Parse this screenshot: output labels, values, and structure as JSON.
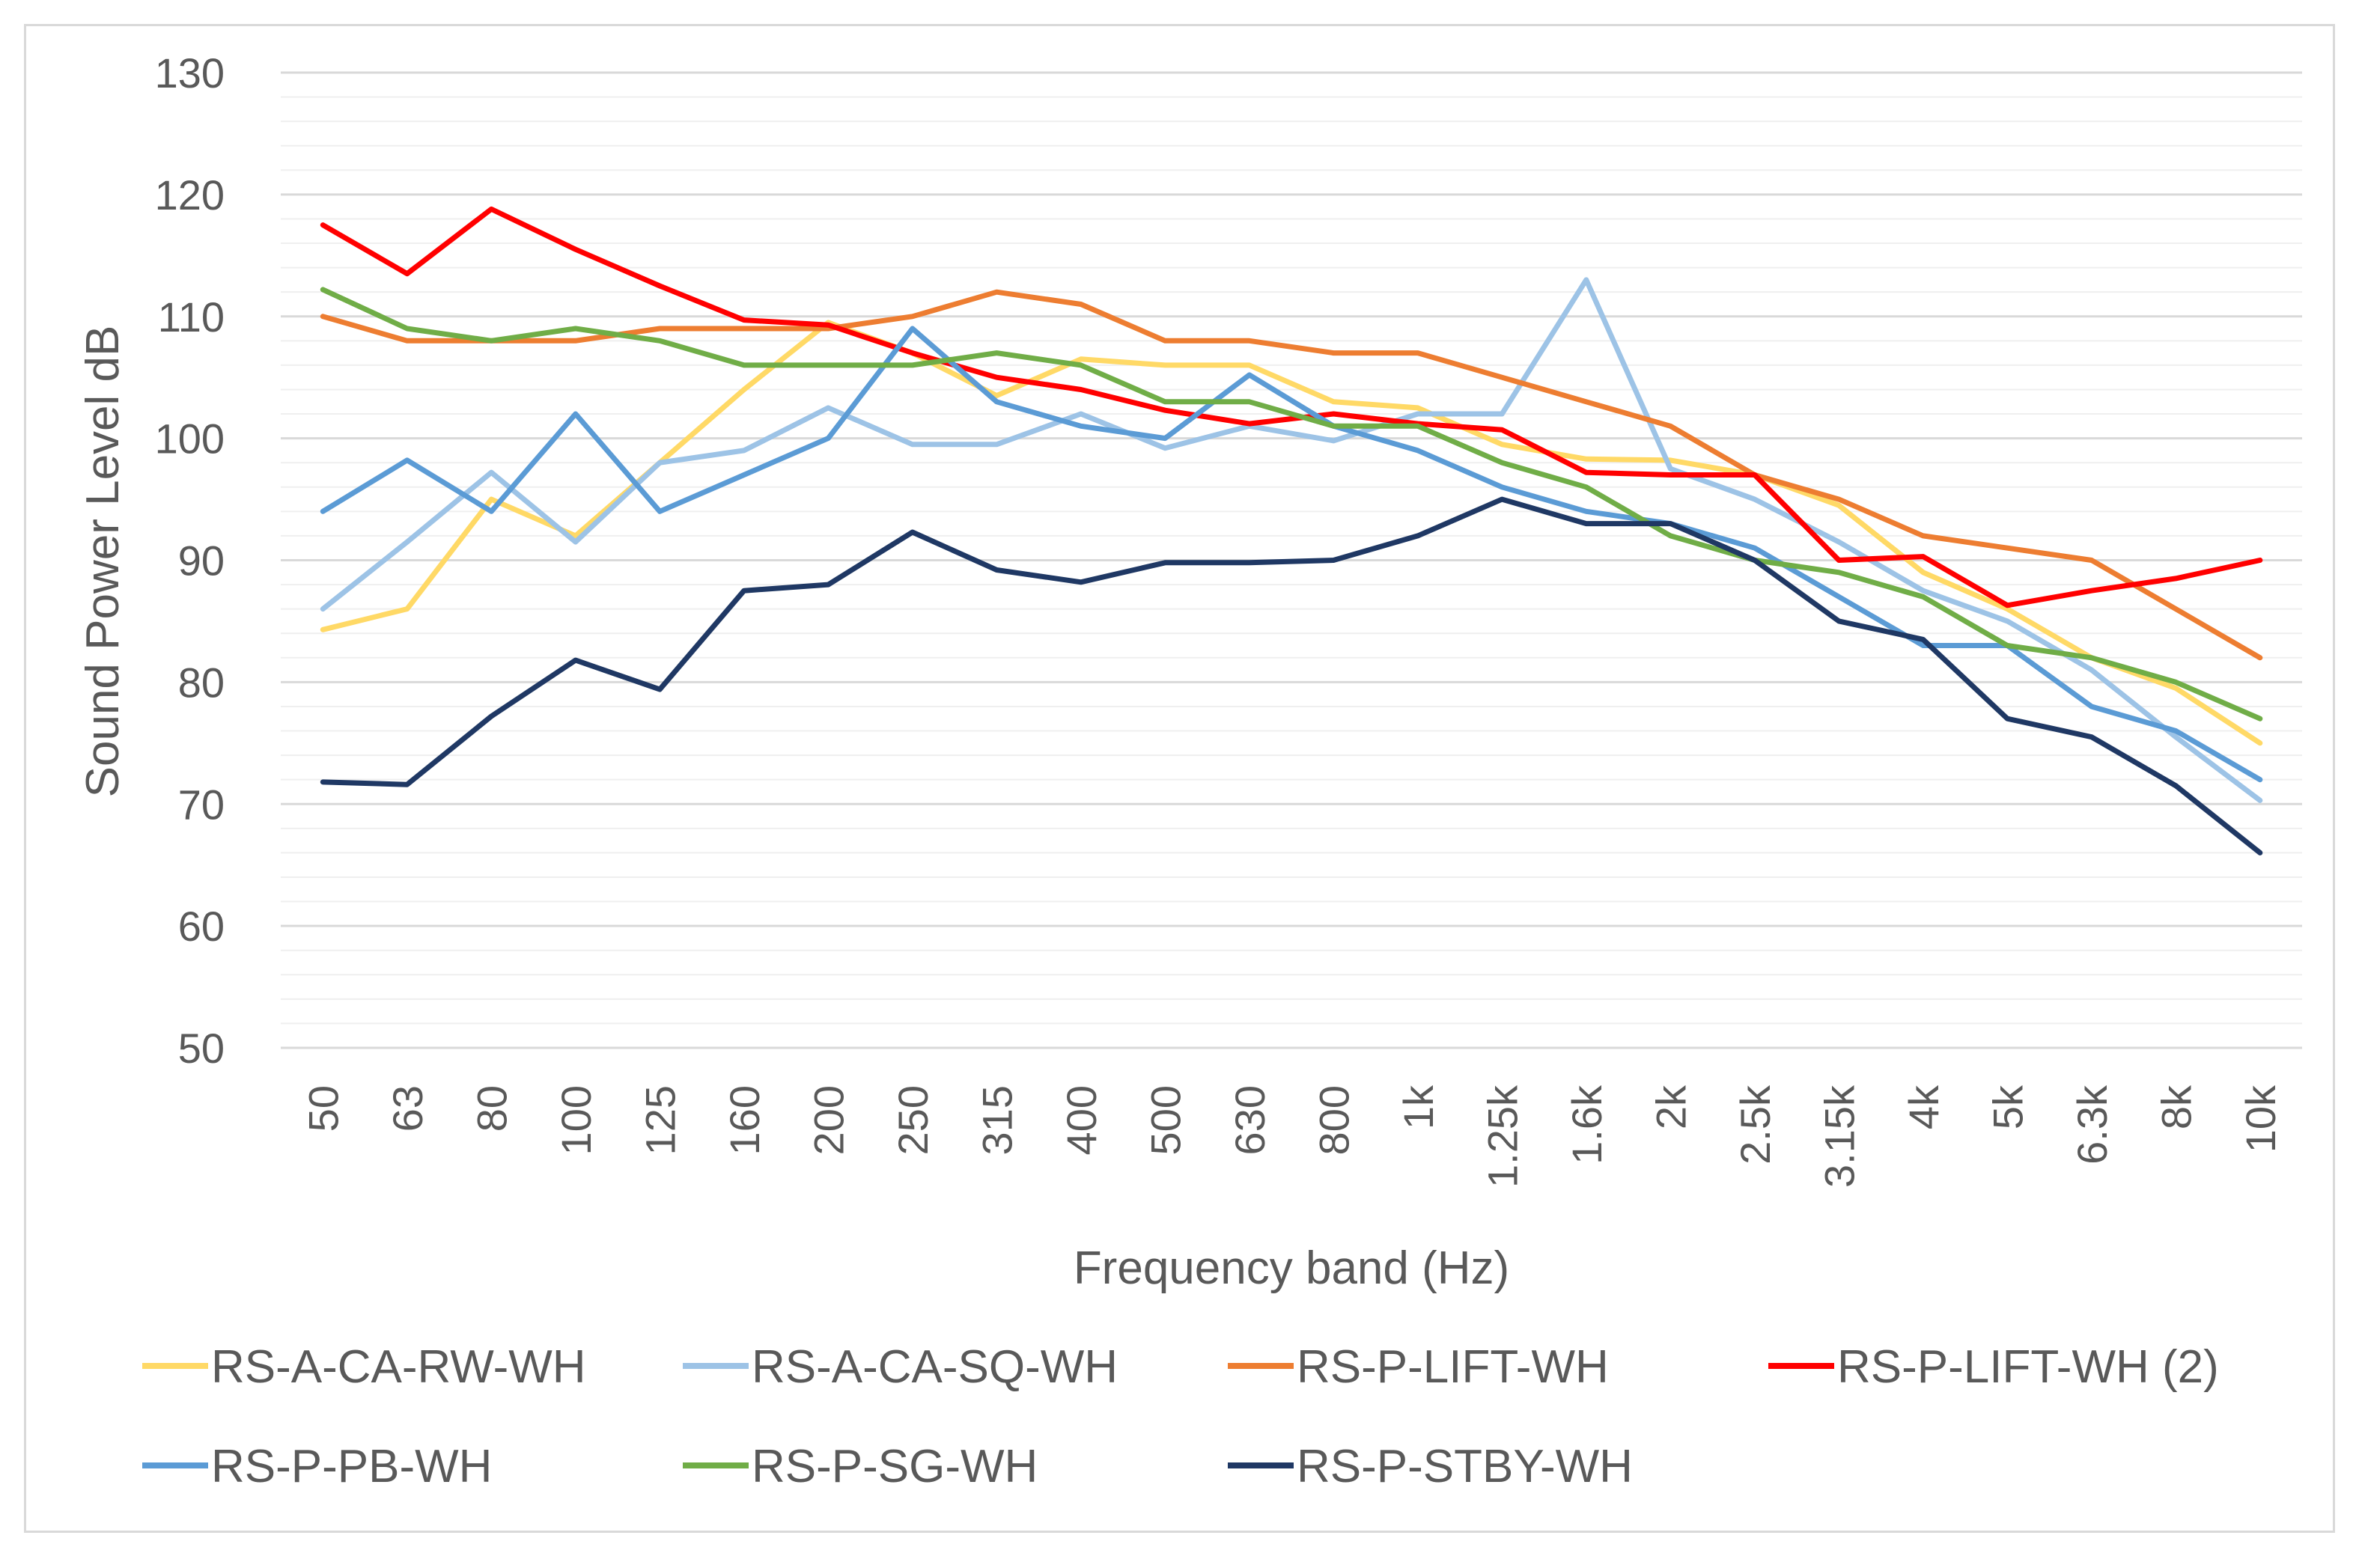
{
  "chart_data": {
    "type": "line",
    "title": "",
    "xlabel": "Frequency band (Hz)",
    "ylabel": "Sound Power Level dB",
    "ylim": [
      50,
      130
    ],
    "ymajor": 10,
    "yminor": 2,
    "grid": true,
    "legend_position": "bottom",
    "categories": [
      "50",
      "63",
      "80",
      "100",
      "125",
      "160",
      "200",
      "250",
      "315",
      "400",
      "500",
      "630",
      "800",
      "1k",
      "1.25k",
      "1.6k",
      "2k",
      "2.5k",
      "3.15k",
      "4k",
      "5k",
      "6.3k",
      "8k",
      "10k"
    ],
    "series": [
      {
        "name": "RS-A-CA-RW-WH",
        "color": "#FFD966",
        "values": [
          84.3,
          86,
          95,
          92,
          98,
          104,
          109.5,
          107,
          103.5,
          106.5,
          106,
          106,
          103,
          102.5,
          99.5,
          98.3,
          98.2,
          97,
          94.5,
          89,
          86,
          82,
          79.5,
          75
        ]
      },
      {
        "name": "RS-A-CA-SQ-WH",
        "color": "#9DC3E6",
        "values": [
          86,
          91.5,
          97.2,
          91.5,
          98,
          99,
          102.5,
          99.5,
          99.5,
          102,
          99.2,
          101,
          99.8,
          102,
          102,
          113,
          97.5,
          95,
          91.5,
          87.5,
          85,
          81,
          75.5,
          70.3
        ]
      },
      {
        "name": "RS-P-LIFT-WH",
        "color": "#ED7D31",
        "values": [
          110,
          108,
          108,
          108,
          109,
          109,
          109,
          110,
          112,
          111,
          108,
          108,
          107,
          107,
          105,
          103,
          101,
          97,
          95,
          92,
          91,
          90,
          86,
          82
        ]
      },
      {
        "name": "RS-P-LIFT-WH (2)",
        "color": "#FF0000",
        "values": [
          117.5,
          113.5,
          118.8,
          115.5,
          112.5,
          109.7,
          109.3,
          107,
          105,
          104,
          102.3,
          101.2,
          102,
          101.2,
          100.7,
          97.2,
          97,
          97,
          90,
          90.3,
          86.3,
          87.5,
          88.5,
          90
        ]
      },
      {
        "name": "RS-P-PB-WH",
        "color": "#5B9BD5",
        "values": [
          94,
          98.2,
          94,
          102,
          94,
          97,
          100,
          109,
          103,
          101,
          100,
          105.2,
          101,
          99,
          96,
          94,
          93,
          91,
          87,
          83,
          83,
          78,
          76,
          72
        ]
      },
      {
        "name": "RS-P-SG-WH",
        "color": "#70AD47",
        "values": [
          112.2,
          109,
          108,
          109,
          108,
          106,
          106,
          106,
          107,
          106,
          103,
          103,
          101,
          101,
          98,
          96,
          92,
          90,
          89,
          87,
          83,
          82,
          80,
          77
        ]
      },
      {
        "name": "RS-P-STBY-WH",
        "color": "#1F3864",
        "values": [
          71.8,
          71.6,
          77.2,
          81.8,
          79.4,
          87.5,
          88,
          92.3,
          89.2,
          88.2,
          89.8,
          89.8,
          90,
          92,
          95,
          93,
          93,
          90,
          85,
          83.5,
          77,
          75.5,
          71.5,
          66
        ]
      }
    ]
  }
}
